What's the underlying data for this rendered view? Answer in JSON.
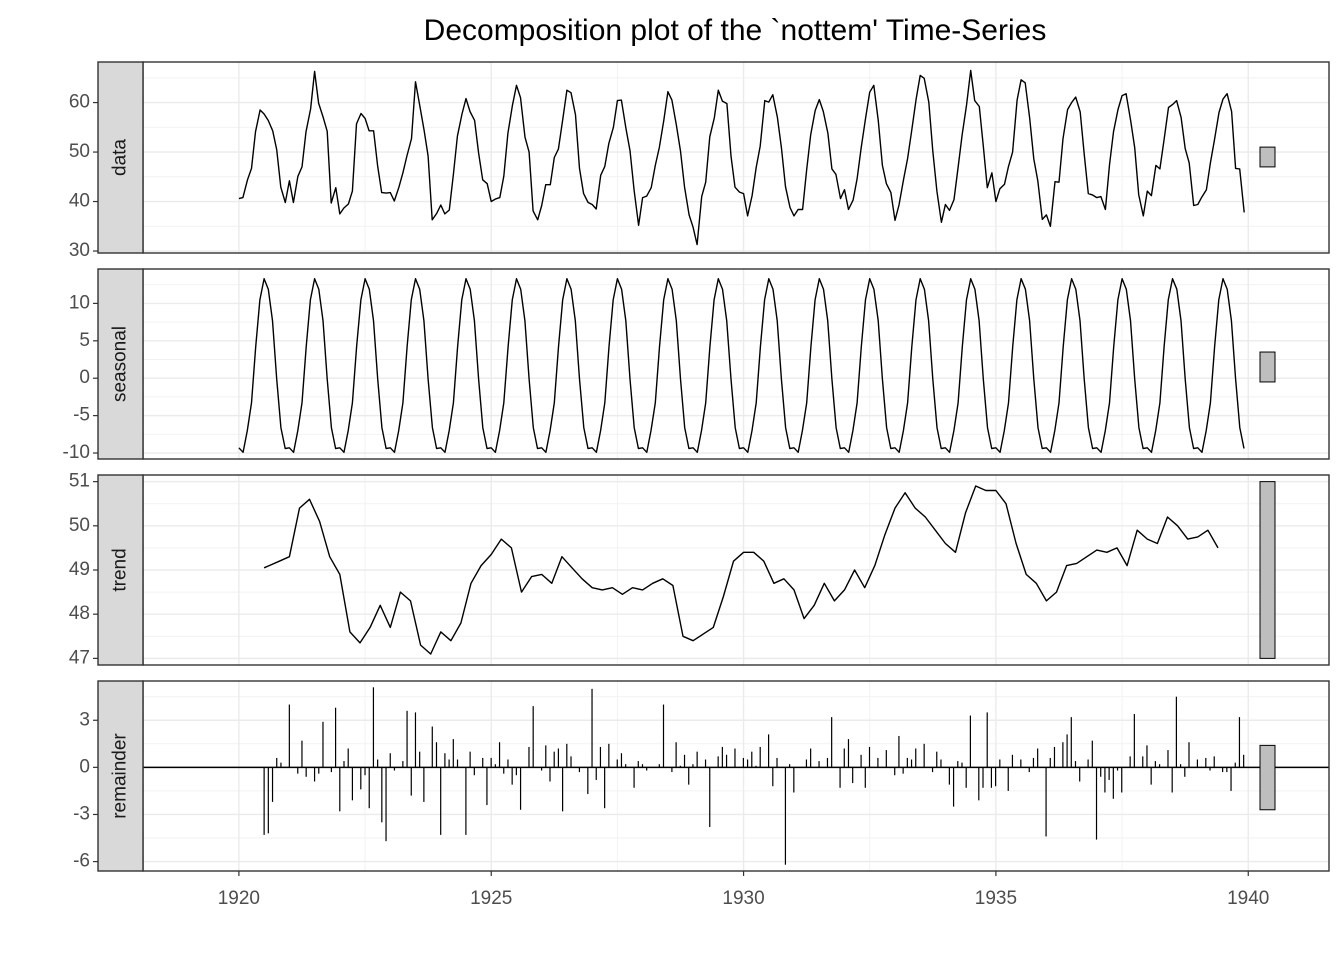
{
  "chart_data": {
    "type": "line",
    "title": "Decomposition plot of the `nottem' Time-Series",
    "xlabel": "",
    "ylabel": "",
    "xlim": [
      1918.1,
      1941.6
    ],
    "x_ticks": [
      1920,
      1925,
      1930,
      1935,
      1940
    ],
    "grid": true,
    "panels": [
      {
        "name": "data",
        "kind": "line",
        "ylim": [
          29.6,
          68.2
        ],
        "y_ticks": [
          30,
          40,
          50,
          60
        ],
        "range_bar": [
          47,
          51
        ],
        "x": [
          1920.0,
          1920.08,
          1920.17,
          1920.25,
          1920.33,
          1920.42,
          1920.5,
          1920.58,
          1920.67,
          1920.75,
          1920.83,
          1920.92,
          1921.0,
          1921.08,
          1921.17,
          1921.25,
          1921.33,
          1921.42,
          1921.5,
          1921.58,
          1921.67,
          1921.75,
          1921.83,
          1921.92,
          1922.0,
          1922.08,
          1922.17,
          1922.25,
          1922.33,
          1922.42,
          1922.5,
          1922.58,
          1922.67,
          1922.75,
          1922.83,
          1922.92,
          1923.0,
          1923.08,
          1923.17,
          1923.25,
          1923.33,
          1923.42,
          1923.5,
          1923.58,
          1923.67,
          1923.75,
          1923.83,
          1923.92,
          1924.0,
          1924.08,
          1924.17,
          1924.25,
          1924.33,
          1924.42,
          1924.5,
          1924.58,
          1924.67,
          1924.75,
          1924.83,
          1924.92,
          1925.0,
          1925.08,
          1925.17,
          1925.25,
          1925.33,
          1925.42,
          1925.5,
          1925.58,
          1925.67,
          1925.75,
          1925.83,
          1925.92,
          1926.0,
          1926.08,
          1926.17,
          1926.25,
          1926.33,
          1926.42,
          1926.5,
          1926.58,
          1926.67,
          1926.75,
          1926.83,
          1926.92,
          1927.0,
          1927.08,
          1927.17,
          1927.25,
          1927.33,
          1927.42,
          1927.5,
          1927.58,
          1927.67,
          1927.75,
          1927.83,
          1927.92,
          1928.0,
          1928.08,
          1928.17,
          1928.25,
          1928.33,
          1928.42,
          1928.5,
          1928.58,
          1928.67,
          1928.75,
          1928.83,
          1928.92,
          1929.0,
          1929.08,
          1929.17,
          1929.25,
          1929.33,
          1929.42,
          1929.5,
          1929.58,
          1929.67,
          1929.75,
          1929.83,
          1929.92,
          1930.0,
          1930.08,
          1930.17,
          1930.25,
          1930.33,
          1930.42,
          1930.5,
          1930.58,
          1930.67,
          1930.75,
          1930.83,
          1930.92,
          1931.0,
          1931.08,
          1931.17,
          1931.25,
          1931.33,
          1931.42,
          1931.5,
          1931.58,
          1931.67,
          1931.75,
          1931.83,
          1931.92,
          1932.0,
          1932.08,
          1932.17,
          1932.25,
          1932.33,
          1932.42,
          1932.5,
          1932.58,
          1932.67,
          1932.75,
          1932.83,
          1932.92,
          1933.0,
          1933.08,
          1933.17,
          1933.25,
          1933.33,
          1933.42,
          1933.5,
          1933.58,
          1933.67,
          1933.75,
          1933.83,
          1933.92,
          1934.0,
          1934.08,
          1934.17,
          1934.25,
          1934.33,
          1934.42,
          1934.5,
          1934.58,
          1934.67,
          1934.75,
          1934.83,
          1934.92,
          1935.0,
          1935.08,
          1935.17,
          1935.25,
          1935.33,
          1935.42,
          1935.5,
          1935.58,
          1935.67,
          1935.75,
          1935.83,
          1935.92,
          1936.0,
          1936.08,
          1936.17,
          1936.25,
          1936.33,
          1936.42,
          1936.5,
          1936.58,
          1936.67,
          1936.75,
          1936.83,
          1936.92,
          1937.0,
          1937.08,
          1937.17,
          1937.25,
          1937.33,
          1937.42,
          1937.5,
          1937.58,
          1937.67,
          1937.75,
          1937.83,
          1937.92,
          1938.0,
          1938.08,
          1938.17,
          1938.25,
          1938.33,
          1938.42,
          1938.5,
          1938.58,
          1938.67,
          1938.75,
          1938.83,
          1938.92,
          1939.0,
          1939.08,
          1939.17,
          1939.25,
          1939.33,
          1939.42,
          1939.5,
          1939.58,
          1939.67,
          1939.75,
          1939.83,
          1939.92
        ],
        "values": [
          40.6,
          40.8,
          44.4,
          46.7,
          54.1,
          58.5,
          57.7,
          56.4,
          54.3,
          50.5,
          42.9,
          39.8,
          44.2,
          39.8,
          45.1,
          47.0,
          54.1,
          58.7,
          66.3,
          59.9,
          57.0,
          54.2,
          39.7,
          42.8,
          37.5,
          38.7,
          39.5,
          42.1,
          55.7,
          57.8,
          56.8,
          54.3,
          54.3,
          47.1,
          41.8,
          41.7,
          41.8,
          40.1,
          42.9,
          45.8,
          49.2,
          52.7,
          64.2,
          59.6,
          54.4,
          49.2,
          36.3,
          37.6,
          39.3,
          37.5,
          38.3,
          45.5,
          53.2,
          57.7,
          60.8,
          58.2,
          56.4,
          49.8,
          44.4,
          43.6,
          40.0,
          40.5,
          40.8,
          45.1,
          53.8,
          59.4,
          63.5,
          61.0,
          53.0,
          50.0,
          38.1,
          36.3,
          39.2,
          43.4,
          43.4,
          48.9,
          50.6,
          56.8,
          62.5,
          62.0,
          57.5,
          46.7,
          41.6,
          39.8,
          39.4,
          38.5,
          45.3,
          47.1,
          51.7,
          55.0,
          60.4,
          60.5,
          54.7,
          50.3,
          42.3,
          35.2,
          40.8,
          41.1,
          42.8,
          47.3,
          50.9,
          56.4,
          62.2,
          60.5,
          55.4,
          50.2,
          43.0,
          37.3,
          34.8,
          31.3,
          41.0,
          43.9,
          53.1,
          56.9,
          62.5,
          60.3,
          59.8,
          49.2,
          42.9,
          41.9,
          41.6,
          37.1,
          41.2,
          46.9,
          51.2,
          60.4,
          60.1,
          61.6,
          57.0,
          50.9,
          43.0,
          38.8,
          37.1,
          38.4,
          38.4,
          46.5,
          53.5,
          58.4,
          60.6,
          58.2,
          53.8,
          46.6,
          45.5,
          40.6,
          42.4,
          38.4,
          40.3,
          44.6,
          50.9,
          57.0,
          62.1,
          63.5,
          56.3,
          47.3,
          43.6,
          41.8,
          36.2,
          39.3,
          44.5,
          48.7,
          54.2,
          60.8,
          65.5,
          64.9,
          60.1,
          50.2,
          42.1,
          35.8,
          39.4,
          38.2,
          40.4,
          46.9,
          53.4,
          59.6,
          66.5,
          60.4,
          59.2,
          51.2,
          42.8,
          45.8,
          40.0,
          42.6,
          43.5,
          47.1,
          50.0,
          60.5,
          64.6,
          64.0,
          56.8,
          48.6,
          44.2,
          36.4,
          37.3,
          35.0,
          44.0,
          43.9,
          52.7,
          58.6,
          60.0,
          61.1,
          58.1,
          49.6,
          41.6,
          41.3,
          40.8,
          41.0,
          38.4,
          47.4,
          54.1,
          58.6,
          61.4,
          61.8,
          56.3,
          50.9,
          41.4,
          37.1,
          42.1,
          41.2,
          47.3,
          46.6,
          52.4,
          59.0,
          59.6,
          60.4,
          57.0,
          50.7,
          47.8,
          39.2,
          39.4,
          40.9,
          42.4,
          47.8,
          52.4,
          58.0,
          60.7,
          61.8,
          58.2,
          46.7,
          46.6,
          37.8
        ]
      },
      {
        "name": "seasonal",
        "kind": "line",
        "ylim": [
          -10.8,
          14.6
        ],
        "y_ticks": [
          -10,
          -5,
          0,
          5,
          10
        ],
        "range_bar": [
          -0.5,
          3.5
        ],
        "pattern": [
          -9.3,
          -9.9,
          -7.0,
          -3.3,
          4.2,
          10.5,
          13.3,
          11.9,
          7.7,
          -0.1,
          -6.6,
          -9.4
        ]
      },
      {
        "name": "trend",
        "kind": "line",
        "ylim": [
          46.85,
          51.15
        ],
        "y_ticks": [
          47,
          48,
          49,
          50,
          51
        ],
        "range_bar": [
          47.0,
          51.0
        ],
        "x": [
          1920.5,
          1920.6,
          1920.8,
          1921.0,
          1921.2,
          1921.4,
          1921.6,
          1921.8,
          1922.0,
          1922.2,
          1922.4,
          1922.6,
          1922.8,
          1923.0,
          1923.2,
          1923.4,
          1923.6,
          1923.8,
          1924.0,
          1924.2,
          1924.4,
          1924.6,
          1924.8,
          1925.0,
          1925.2,
          1925.4,
          1925.6,
          1925.8,
          1926.0,
          1926.2,
          1926.4,
          1926.6,
          1926.8,
          1927.0,
          1927.2,
          1927.4,
          1927.6,
          1927.8,
          1928.0,
          1928.2,
          1928.4,
          1928.6,
          1928.8,
          1929.0,
          1929.2,
          1929.4,
          1929.6,
          1929.8,
          1930.0,
          1930.2,
          1930.4,
          1930.6,
          1930.8,
          1931.0,
          1931.2,
          1931.4,
          1931.6,
          1931.8,
          1932.0,
          1932.2,
          1932.4,
          1932.6,
          1932.8,
          1933.0,
          1933.2,
          1933.4,
          1933.6,
          1933.8,
          1934.0,
          1934.2,
          1934.4,
          1934.6,
          1934.8,
          1935.0,
          1935.2,
          1935.4,
          1935.6,
          1935.8,
          1936.0,
          1936.2,
          1936.4,
          1936.6,
          1936.8,
          1937.0,
          1937.2,
          1937.4,
          1937.6,
          1937.8,
          1938.0,
          1938.2,
          1938.4,
          1938.6,
          1938.8,
          1939.0,
          1939.2,
          1939.4
        ],
        "values": [
          49.05,
          49.1,
          49.2,
          49.3,
          50.4,
          50.6,
          50.1,
          49.3,
          48.9,
          47.6,
          47.35,
          47.7,
          48.2,
          47.7,
          48.5,
          48.3,
          47.3,
          47.1,
          47.6,
          47.4,
          47.8,
          48.7,
          49.1,
          49.35,
          49.7,
          49.5,
          48.5,
          48.85,
          48.9,
          48.7,
          49.3,
          49.05,
          48.8,
          48.6,
          48.55,
          48.6,
          48.45,
          48.6,
          48.55,
          48.7,
          48.8,
          48.65,
          47.5,
          47.4,
          47.55,
          47.7,
          48.4,
          49.2,
          49.4,
          49.4,
          49.2,
          48.7,
          48.8,
          48.55,
          47.9,
          48.2,
          48.7,
          48.3,
          48.55,
          49.0,
          48.6,
          49.1,
          49.8,
          50.4,
          50.75,
          50.4,
          50.2,
          49.9,
          49.6,
          49.4,
          50.3,
          50.9,
          50.8,
          50.8,
          50.5,
          49.6,
          48.9,
          48.7,
          48.3,
          48.5,
          49.1,
          49.15,
          49.3,
          49.45,
          49.4,
          49.5,
          49.1,
          49.9,
          49.7,
          49.6,
          50.2,
          50.0,
          49.7,
          49.75,
          49.9,
          49.5
        ]
      },
      {
        "name": "remainder",
        "kind": "bar",
        "ylim": [
          -6.6,
          5.5
        ],
        "y_ticks": [
          -6,
          -3,
          0,
          3
        ],
        "range_bar": [
          -2.7,
          1.4
        ],
        "x_start": 1920.5,
        "x_step": 0.0833,
        "values": [
          -4.3,
          -4.2,
          -2.2,
          0.6,
          0.3,
          0.0,
          4.0,
          0.0,
          -0.4,
          1.7,
          -0.6,
          0.0,
          -0.9,
          -0.4,
          2.9,
          0.0,
          -0.3,
          3.8,
          -2.8,
          0.4,
          1.2,
          -2.1,
          0.0,
          -1.4,
          -0.5,
          -2.6,
          5.1,
          0.5,
          -3.5,
          -4.7,
          0.9,
          -0.2,
          0.0,
          0.4,
          3.6,
          -1.8,
          3.5,
          1.0,
          -2.2,
          0.0,
          2.6,
          1.6,
          -4.3,
          0.9,
          0.5,
          1.8,
          0.5,
          0.0,
          -4.3,
          1.0,
          -0.5,
          0.0,
          0.6,
          -2.4,
          0.6,
          0.2,
          1.6,
          -0.4,
          0.5,
          -1.1,
          -0.5,
          -2.7,
          0.0,
          1.3,
          3.9,
          0.0,
          -0.2,
          1.4,
          -0.9,
          1.0,
          1.2,
          -2.8,
          1.5,
          0.7,
          0.0,
          -0.3,
          0.0,
          -1.7,
          5.0,
          -0.8,
          1.3,
          -2.6,
          1.5,
          0.0,
          0.5,
          0.9,
          0.2,
          0.0,
          -1.3,
          0.4,
          0.2,
          -0.2,
          0.0,
          0.0,
          0.2,
          4.0,
          0.0,
          -0.3,
          1.6,
          0.1,
          0.8,
          -1.1,
          0.2,
          1.0,
          0.0,
          0.5,
          -3.8,
          0.0,
          0.7,
          1.3,
          0.8,
          0.0,
          1.2,
          0.0,
          0.6,
          0.5,
          1.0,
          0.1,
          1.3,
          0.0,
          2.1,
          -1.2,
          0.6,
          0.0,
          -6.2,
          0.2,
          -1.6,
          0.0,
          0.0,
          0.5,
          1.2,
          0.0,
          0.4,
          0.0,
          0.6,
          3.2,
          0.0,
          -1.3,
          1.2,
          1.8,
          -1.0,
          0.0,
          0.8,
          -1.3,
          1.3,
          0.0,
          0.6,
          0.0,
          1.1,
          0.0,
          -0.5,
          2.0,
          -0.4,
          0.6,
          0.5,
          1.2,
          0.0,
          1.5,
          0.0,
          -0.3,
          1.0,
          0.5,
          0.0,
          -1.1,
          -2.5,
          0.4,
          0.3,
          -1.3,
          3.3,
          0.0,
          -2.1,
          -1.3,
          3.5,
          -1.3,
          -1.2,
          0.5,
          0.0,
          -1.5,
          0.8,
          0.0,
          0.5,
          0.0,
          -0.3,
          0.6,
          1.2,
          0.0,
          -4.4,
          0.6,
          1.3,
          0.0,
          1.6,
          2.1,
          3.2,
          0.4,
          -0.9,
          0.0,
          0.5,
          1.7,
          -4.6,
          -0.6,
          -1.6,
          -0.8,
          -2.0,
          -0.2,
          -1.6,
          0.0,
          0.7,
          3.4,
          0.0,
          0.7,
          1.4,
          -1.1,
          0.4,
          0.2,
          0.0,
          1.1,
          -1.6,
          4.5,
          0.2,
          -0.6,
          1.6,
          0.0,
          0.5,
          0.0,
          0.6,
          -0.2,
          0.7,
          0.0,
          -0.3,
          -0.3,
          -1.5,
          0.3,
          3.2,
          0.8
        ]
      }
    ]
  }
}
